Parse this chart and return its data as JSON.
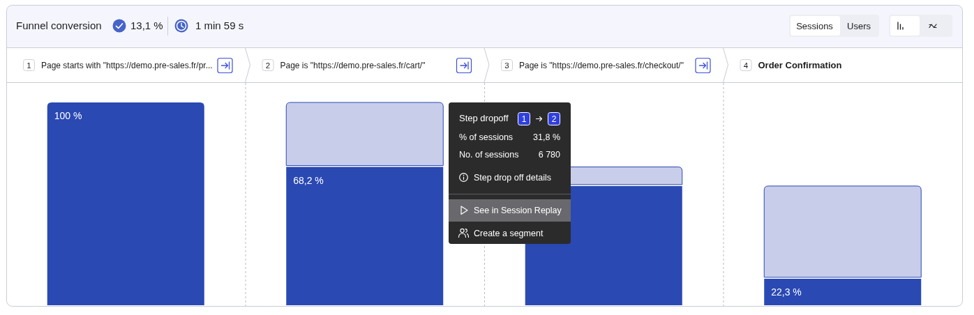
{
  "chart_data": {
    "type": "bar",
    "title": "Funnel conversion",
    "categories": [
      "Page starts with \"https://demo.pre-sales.fr/pr...",
      "Page is \"https://demo.pre-sales.fr/cart/\"",
      "Page is \"https://demo.pre-sales.fr/checkout/\"",
      "Order Confirmation"
    ],
    "stacked": true,
    "series": [
      {
        "color": "#2a49b3",
        "values": [
          100,
          68.2,
          58.8,
          13.1
        ],
        "value_labels": [
          "100 %",
          "68,2 %",
          null,
          null
        ]
      },
      {
        "color": "#c8cdea",
        "values": [
          null,
          31.8,
          9.4,
          45.7
        ]
      }
    ],
    "annotations": [
      "13,1 %",
      "1 min 59 s",
      "Sessions",
      "Users",
      "1",
      "2",
      "3",
      "4",
      "Step dropoff",
      "1",
      "2",
      "% of sessions",
      "31,8 %",
      "No. of sessions",
      "6 780",
      "Step drop off details",
      "See in Session Replay",
      "Create a segment",
      {
        "text": "22,3 %",
        "x": "Order Confirmation",
        "y": 13.1
      }
    ]
  }
}
